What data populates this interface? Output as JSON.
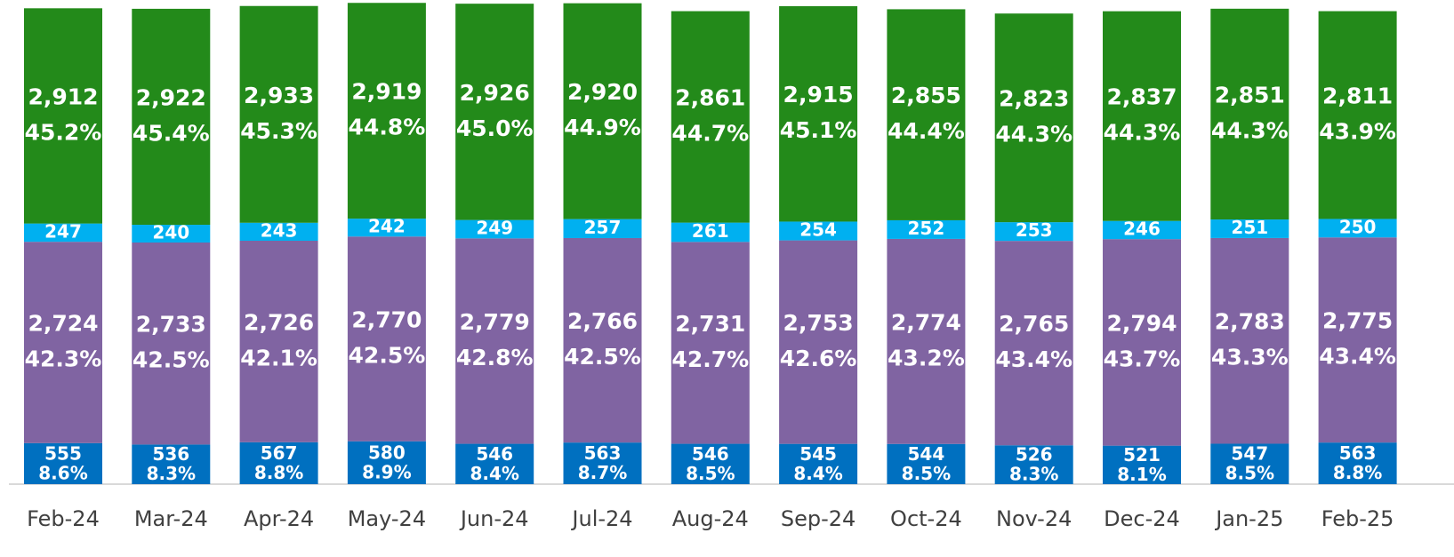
{
  "chart_data": {
    "type": "stacked_bar",
    "categories": [
      "Feb-24",
      "Mar-24",
      "Apr-24",
      "May-24",
      "Jun-24",
      "Jul-24",
      "Aug-24",
      "Sep-24",
      "Oct-24",
      "Nov-24",
      "Dec-24",
      "Jan-25",
      "Feb-25"
    ],
    "ylim": [
      0,
      6550
    ],
    "series": [
      {
        "color": "#0070c0",
        "values": [
          555,
          536,
          567,
          580,
          546,
          563,
          546,
          545,
          544,
          526,
          521,
          547,
          563
        ],
        "shares": [
          8.6,
          8.3,
          8.8,
          8.9,
          8.4,
          8.7,
          8.5,
          8.4,
          8.5,
          8.3,
          8.1,
          8.5,
          8.8
        ],
        "share_labels": [
          "8.6%",
          "8.3%",
          "8.8%",
          "8.9%",
          "8.4%",
          "8.7%",
          "8.5%",
          "8.4%",
          "8.5%",
          "8.3%",
          "8.1%",
          "8.5%",
          "8.8%"
        ]
      },
      {
        "color": "#8064a2",
        "values": [
          2724,
          2733,
          2726,
          2770,
          2779,
          2766,
          2731,
          2753,
          2774,
          2765,
          2794,
          2783,
          2775
        ],
        "value_labels": [
          "2,724",
          "2,733",
          "2,726",
          "2,770",
          "2,779",
          "2,766",
          "2,731",
          "2,753",
          "2,774",
          "2,765",
          "2,794",
          "2,783",
          "2,775"
        ],
        "shares": [
          42.3,
          42.5,
          42.1,
          42.5,
          42.8,
          42.5,
          42.7,
          42.6,
          43.2,
          43.4,
          43.7,
          43.3,
          43.4
        ],
        "share_labels": [
          "42.3%",
          "42.5%",
          "42.1%",
          "42.5%",
          "42.8%",
          "42.5%",
          "42.7%",
          "42.6%",
          "43.2%",
          "43.4%",
          "43.7%",
          "43.3%",
          "43.4%"
        ]
      },
      {
        "color": "#00b0f0",
        "values": [
          247,
          240,
          243,
          242,
          249,
          257,
          261,
          254,
          252,
          253,
          246,
          251,
          250
        ]
      },
      {
        "color": "#238a1a",
        "values": [
          2912,
          2922,
          2933,
          2919,
          2926,
          2920,
          2861,
          2915,
          2855,
          2823,
          2837,
          2851,
          2811
        ],
        "value_labels": [
          "2,912",
          "2,922",
          "2,933",
          "2,919",
          "2,926",
          "2,920",
          "2,861",
          "2,915",
          "2,855",
          "2,823",
          "2,837",
          "2,851",
          "2,811"
        ],
        "shares": [
          45.2,
          45.4,
          45.3,
          44.8,
          45,
          44.9,
          44.7,
          45.1,
          44.4,
          44.3,
          44.3,
          44.3,
          43.9
        ],
        "share_labels": [
          "45.2%",
          "45.4%",
          "45.3%",
          "44.8%",
          "45.0%",
          "44.9%",
          "44.7%",
          "45.1%",
          "44.4%",
          "44.3%",
          "44.3%",
          "44.3%",
          "43.9%"
        ]
      }
    ]
  }
}
